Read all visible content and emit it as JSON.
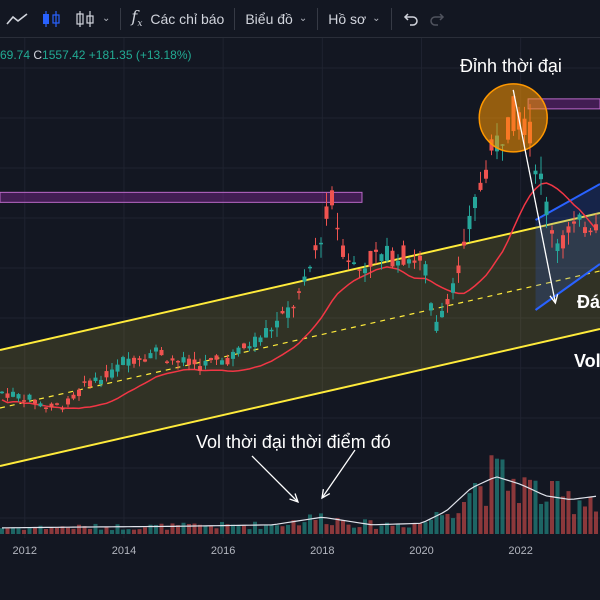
{
  "toolbar": {
    "indicators_label": "Các chỉ báo",
    "chart_label": "Biểu đồ",
    "profile_label": "Hồ sơ"
  },
  "legend": {
    "partial_value": "69.74",
    "close_label": "C",
    "close_value": "1557.42",
    "change": "+181.35 (+13.18%)"
  },
  "colors": {
    "background": "#131722",
    "up": "#26a69a",
    "down": "#ef5350",
    "channel": "#ffeb3b",
    "ma": "#f23645",
    "resistance": "#9c27b0",
    "blue_channel": "#2962ff"
  },
  "annotations": {
    "ath_label": "Đỉnh thời đại",
    "vol_label": "Vol thời đại thời điểm đó",
    "bottom_partial": "Đá",
    "vol_partial": "Vol"
  },
  "chart_data": {
    "type": "candlestick",
    "x_ticks": [
      "2012",
      "2014",
      "2016",
      "2018",
      "2020",
      "2022"
    ],
    "x_range": [
      2011.5,
      2023.6
    ],
    "y_range": [
      150,
      1560
    ],
    "grid": true,
    "price_by_year": [
      [
        2011.5,
        440
      ],
      [
        2012.0,
        420
      ],
      [
        2012.5,
        380
      ],
      [
        2012.9,
        400
      ],
      [
        2013.3,
        480
      ],
      [
        2013.7,
        500
      ],
      [
        2014.0,
        560
      ],
      [
        2014.4,
        580
      ],
      [
        2014.7,
        600
      ],
      [
        2015.0,
        560
      ],
      [
        2015.5,
        540
      ],
      [
        2016.0,
        560
      ],
      [
        2016.4,
        600
      ],
      [
        2016.8,
        660
      ],
      [
        2017.2,
        720
      ],
      [
        2017.6,
        820
      ],
      [
        2017.9,
        1000
      ],
      [
        2018.2,
        1170
      ],
      [
        2018.4,
        1000
      ],
      [
        2018.7,
        900
      ],
      [
        2019.0,
        950
      ],
      [
        2019.4,
        960
      ],
      [
        2019.8,
        960
      ],
      [
        2020.1,
        900
      ],
      [
        2020.25,
        660
      ],
      [
        2020.5,
        800
      ],
      [
        2020.8,
        920
      ],
      [
        2021.0,
        1100
      ],
      [
        2021.3,
        1300
      ],
      [
        2021.6,
        1420
      ],
      [
        2021.85,
        1500
      ],
      [
        2022.1,
        1480
      ],
      [
        2022.4,
        1250
      ],
      [
        2022.6,
        1080
      ],
      [
        2022.8,
        1000
      ],
      [
        2023.0,
        1050
      ],
      [
        2023.3,
        1080
      ],
      [
        2023.6,
        1100
      ]
    ],
    "volume_by_year": [
      [
        2011.5,
        0.08
      ],
      [
        2013.0,
        0.09
      ],
      [
        2015.0,
        0.1
      ],
      [
        2017.0,
        0.12
      ],
      [
        2018.0,
        0.22
      ],
      [
        2019.0,
        0.12
      ],
      [
        2020.0,
        0.14
      ],
      [
        2020.5,
        0.3
      ],
      [
        2021.0,
        0.6
      ],
      [
        2021.5,
        0.75
      ],
      [
        2022.0,
        0.65
      ],
      [
        2022.5,
        0.5
      ],
      [
        2023.0,
        0.45
      ],
      [
        2023.6,
        0.5
      ]
    ],
    "ath_value": 1530,
    "resistance_2018": 1170,
    "resistance_ath": 1530
  }
}
